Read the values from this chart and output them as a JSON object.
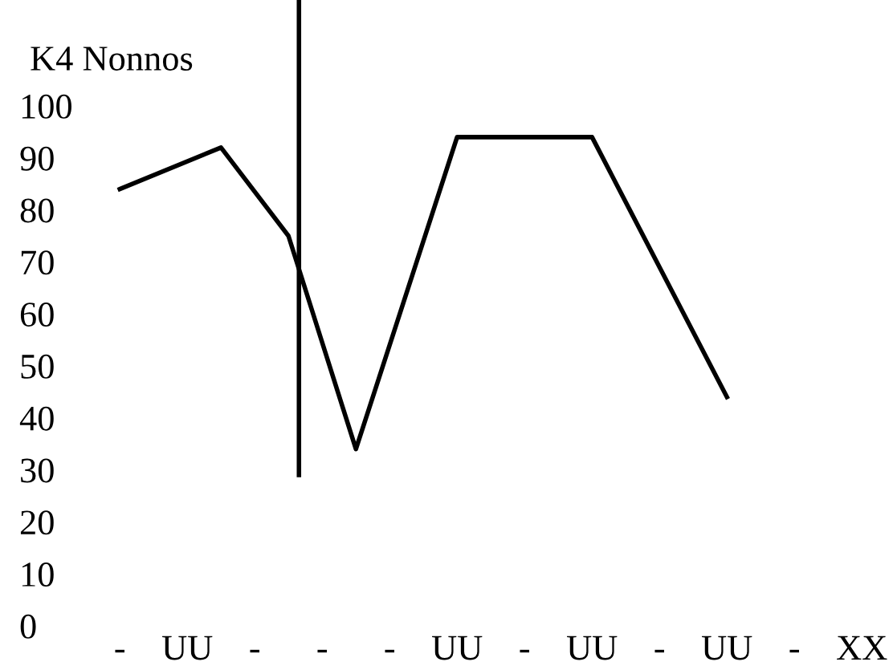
{
  "chart_data": {
    "type": "line",
    "title": "K4 Nonnos",
    "categories": [
      "-",
      null,
      "UU",
      null,
      "-",
      null,
      "-",
      null,
      "-",
      null,
      "UU",
      null,
      "-",
      null,
      "UU",
      null,
      "-",
      null,
      "UU",
      null,
      "-",
      null,
      "XX"
    ],
    "series": [
      {
        "color": "#000000",
        "values": [
          84,
          null,
          null,
          92,
          null,
          75,
          null,
          34,
          null,
          null,
          94,
          null,
          null,
          null,
          94,
          null,
          null,
          null,
          44,
          null,
          null,
          null,
          null
        ]
      }
    ],
    "ylim": [
      0,
      100
    ],
    "yticks": [
      0,
      10,
      20,
      30,
      40,
      50,
      60,
      70,
      80,
      90,
      100
    ],
    "grid": false,
    "legend": false,
    "marker": "none",
    "line_style": "solid"
  }
}
